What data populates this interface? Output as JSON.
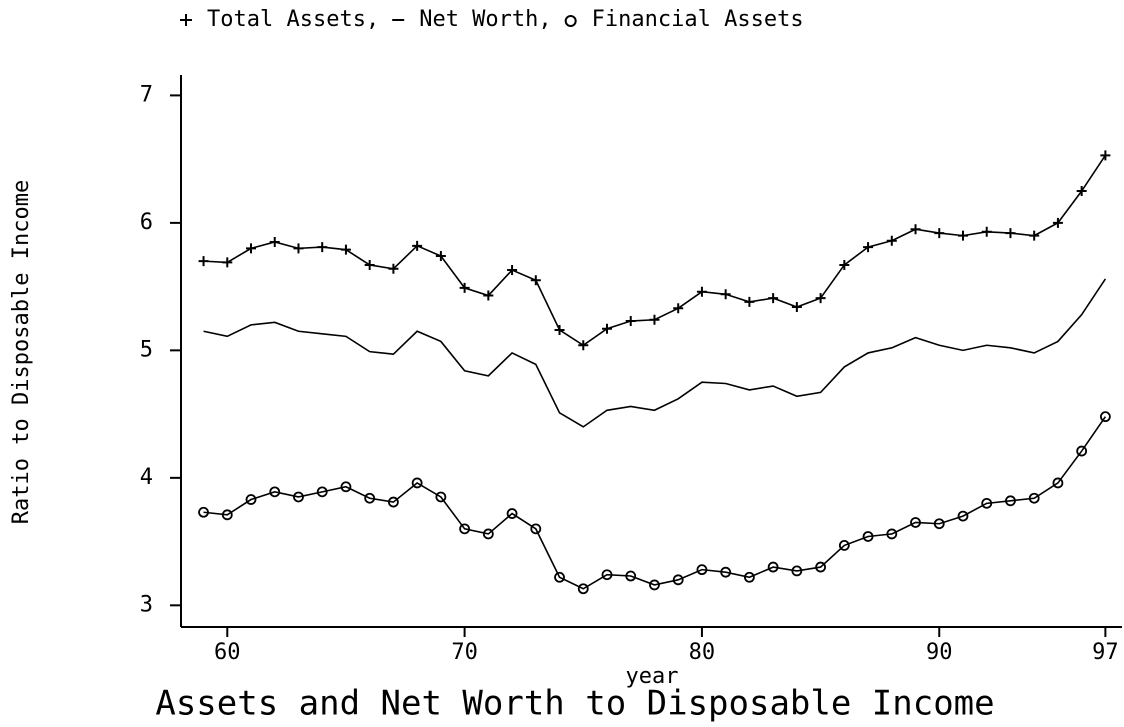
{
  "chart_data": {
    "type": "line",
    "title": "Assets and Net Worth to Disposable Income",
    "xlabel": "year",
    "ylabel": "Ratio to Disposable Income",
    "legend_separator": ",",
    "x": [
      59,
      60,
      61,
      62,
      63,
      64,
      65,
      66,
      67,
      68,
      69,
      70,
      71,
      72,
      73,
      74,
      75,
      76,
      77,
      78,
      79,
      80,
      81,
      82,
      83,
      84,
      85,
      86,
      87,
      88,
      89,
      90,
      91,
      92,
      93,
      94,
      95,
      96,
      97
    ],
    "series": [
      {
        "name": "Total Assets",
        "color": "#000000",
        "marker": "plus",
        "values": [
          5.7,
          5.69,
          5.8,
          5.85,
          5.8,
          5.81,
          5.79,
          5.67,
          5.64,
          5.82,
          5.74,
          5.49,
          5.43,
          5.63,
          5.55,
          5.16,
          5.04,
          5.17,
          5.23,
          5.24,
          5.33,
          5.46,
          5.44,
          5.38,
          5.41,
          5.34,
          5.41,
          5.67,
          5.81,
          5.86,
          5.95,
          5.92,
          5.9,
          5.93,
          5.92,
          5.9,
          6.0,
          6.25,
          6.53
        ]
      },
      {
        "name": "Net Worth",
        "color": "#000000",
        "marker": "none",
        "values": [
          5.15,
          5.11,
          5.2,
          5.22,
          5.15,
          5.13,
          5.11,
          4.99,
          4.97,
          5.15,
          5.07,
          4.84,
          4.8,
          4.98,
          4.89,
          4.51,
          4.4,
          4.53,
          4.56,
          4.53,
          4.62,
          4.75,
          4.74,
          4.69,
          4.72,
          4.64,
          4.67,
          4.87,
          4.98,
          5.02,
          5.1,
          5.04,
          5.0,
          5.04,
          5.02,
          4.98,
          5.07,
          5.28,
          5.56
        ]
      },
      {
        "name": "Financial Assets",
        "color": "#000000",
        "marker": "circle",
        "values": [
          3.73,
          3.71,
          3.83,
          3.89,
          3.85,
          3.89,
          3.93,
          3.84,
          3.81,
          3.96,
          3.85,
          3.6,
          3.56,
          3.72,
          3.6,
          3.22,
          3.13,
          3.24,
          3.23,
          3.16,
          3.2,
          3.28,
          3.26,
          3.22,
          3.3,
          3.27,
          3.3,
          3.47,
          3.54,
          3.56,
          3.65,
          3.64,
          3.7,
          3.8,
          3.82,
          3.84,
          3.96,
          4.21,
          4.48
        ]
      }
    ],
    "xlim": [
      58.05,
      97.7
    ],
    "xticks": [
      60,
      70,
      80,
      90,
      97
    ],
    "ylim": [
      2.83,
      7.16
    ],
    "yticks": [
      3,
      4,
      5,
      6,
      7
    ]
  }
}
